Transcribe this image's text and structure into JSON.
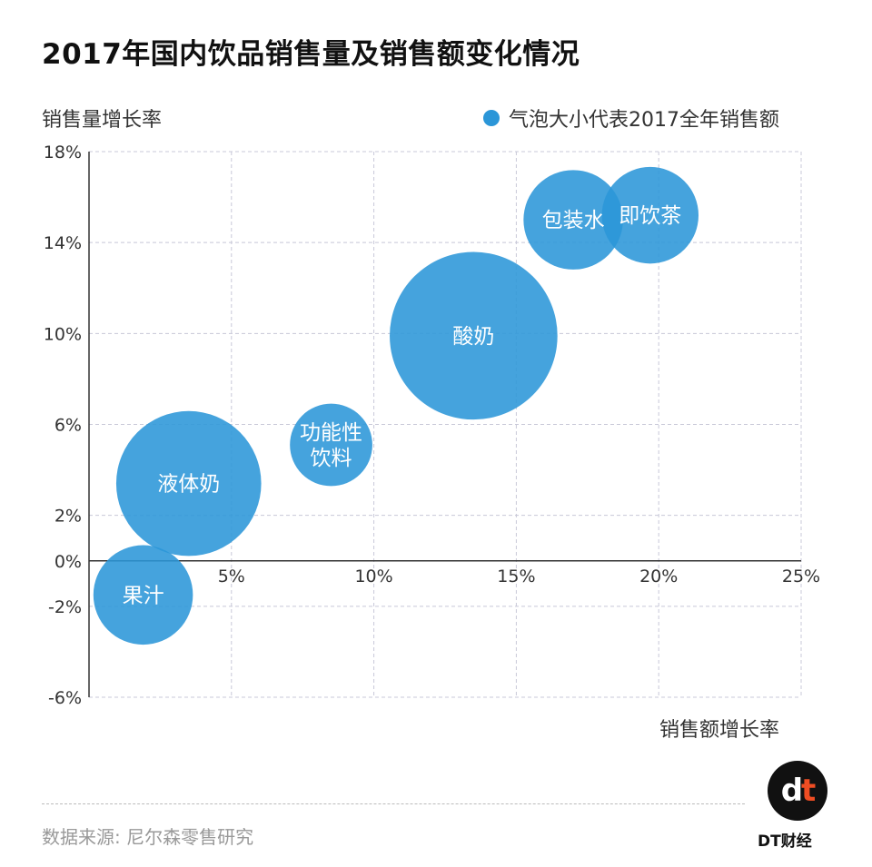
{
  "title": "2017年国内饮品销售量及销售额变化情况",
  "legend": {
    "text": "气泡大小代表2017全年销售额",
    "color": "#2b96d8"
  },
  "source": "数据来源: 尼尔森零售研究",
  "brand": {
    "logo_text": "dt",
    "name": "DT财经"
  },
  "chart_data": {
    "type": "scatter",
    "variant": "bubble",
    "title": "2017年国内饮品销售量及销售额变化情况",
    "xlabel": "销售额增长率",
    "ylabel": "销售量增长率",
    "xlim": [
      0,
      25
    ],
    "ylim": [
      -6,
      18
    ],
    "x_ticks": [
      5,
      10,
      15,
      20,
      25
    ],
    "x_tick_labels": [
      "5%",
      "10%",
      "15%",
      "20%",
      "25%"
    ],
    "y_ticks": [
      -6,
      -2,
      0,
      2,
      6,
      10,
      14,
      18
    ],
    "y_tick_labels": [
      "-6%",
      "-2%",
      "0%",
      "2%",
      "6%",
      "10%",
      "14%",
      "18%"
    ],
    "grid": true,
    "legend_position": "top-right",
    "bubble_color": "#2b96d8",
    "points": [
      {
        "label": "果汁",
        "x": 1.9,
        "y": -1.5,
        "size": 3.5
      },
      {
        "label": "液体奶",
        "x": 3.5,
        "y": 3.4,
        "size": 5.1
      },
      {
        "label": "功能性饮料",
        "label_lines": [
          "功能性",
          "饮料"
        ],
        "x": 8.5,
        "y": 5.1,
        "size": 2.9
      },
      {
        "label": "酸奶",
        "x": 13.5,
        "y": 9.9,
        "size": 5.9
      },
      {
        "label": "包装水",
        "x": 17.0,
        "y": 15.0,
        "size": 3.5
      },
      {
        "label": "即饮茶",
        "x": 19.7,
        "y": 15.2,
        "size": 3.4
      }
    ]
  }
}
